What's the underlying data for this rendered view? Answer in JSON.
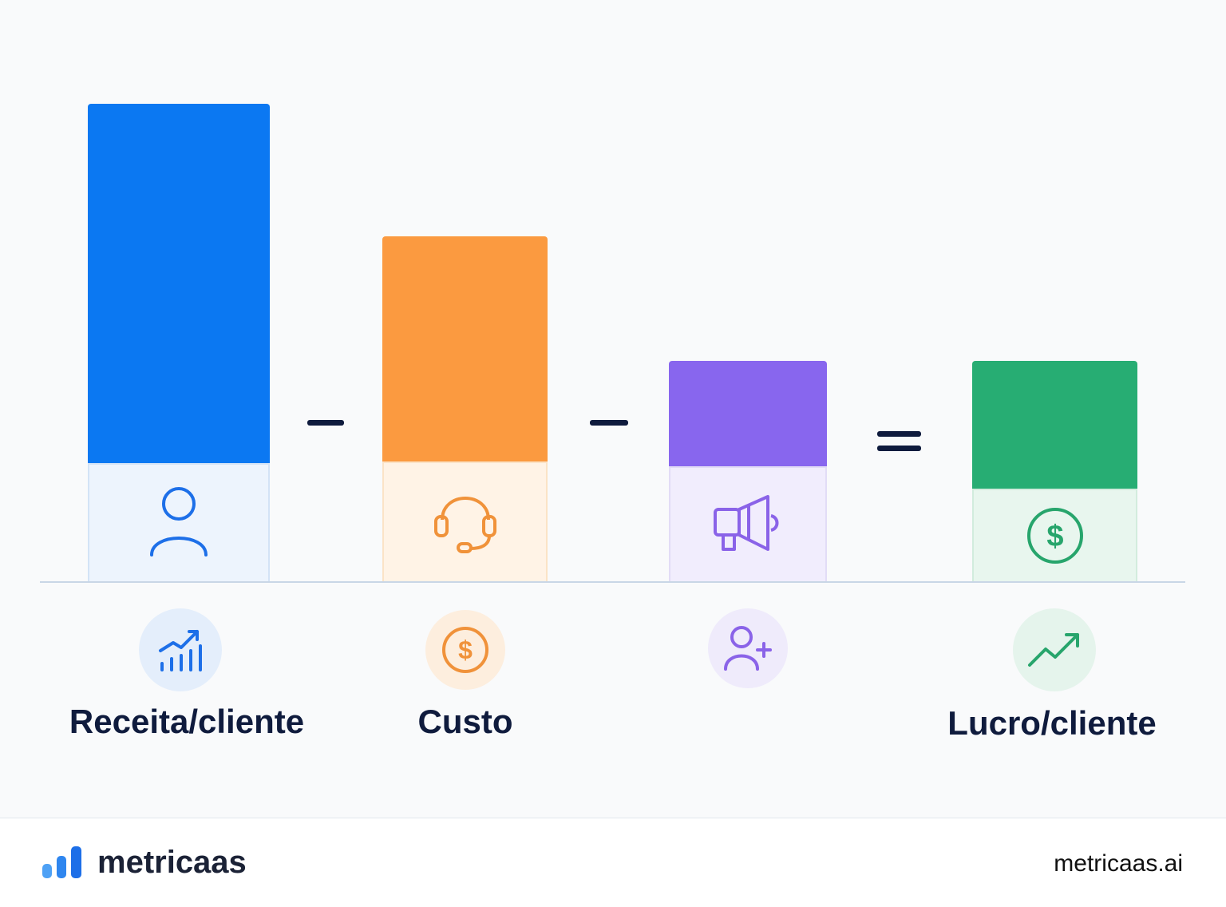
{
  "bars": [
    {
      "label": "Receita/cliente",
      "fill_color": "#0b78f2",
      "base_color": "#edf4fd",
      "base_border": "#d3e3f6",
      "icon": "user-icon",
      "circle_icon": "bar-chart-trend-icon",
      "circle_color": "#e4eefb",
      "accent": "#1d6fe8"
    },
    {
      "label": "Custo",
      "fill_color": "#fb9a40",
      "base_color": "#fff3e6",
      "base_border": "#fbe3c6",
      "icon": "headset-icon",
      "circle_icon": "dollar-coin-icon",
      "circle_color": "#fdeede",
      "accent": "#f0923a"
    },
    {
      "label": "",
      "fill_color": "#8866ee",
      "base_color": "#f1edfd",
      "base_border": "#e2dcf6",
      "icon": "megaphone-icon",
      "circle_icon": "add-user-icon",
      "circle_color": "#efebfb",
      "accent": "#8a63e8"
    },
    {
      "label": "Lucro/cliente",
      "fill_color": "#27ad73",
      "base_color": "#e8f6ee",
      "base_border": "#d2ecdd",
      "icon": "dollar-coin-icon",
      "circle_icon": "trend-up-icon",
      "circle_color": "#e5f4ec",
      "accent": "#27a56c"
    }
  ],
  "operators": [
    "minus",
    "minus",
    "equals"
  ],
  "footer": {
    "brand": "metricaas",
    "url": "metricaas.ai",
    "logo_color": "#1d6fe8"
  }
}
